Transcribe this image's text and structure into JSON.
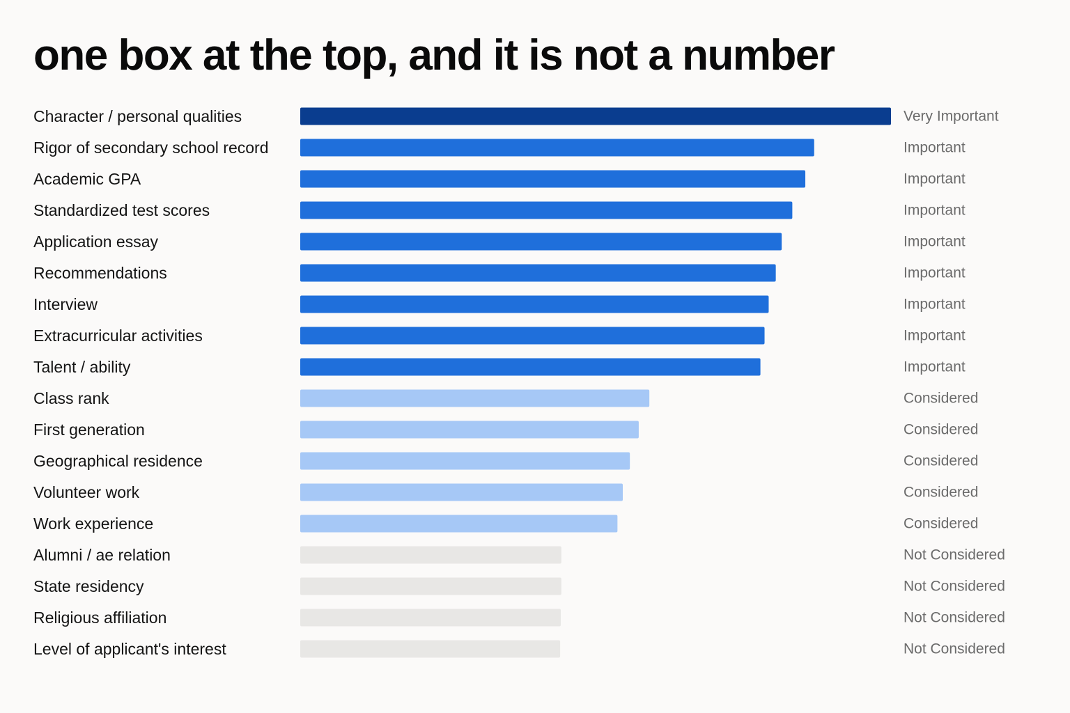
{
  "title": "one box at the top, and it is not a number",
  "chart_data": {
    "type": "bar",
    "orientation": "horizontal",
    "title": "one box at the top, and it is not a number",
    "categories": [
      "Character / personal qualities",
      "Rigor of secondary school record",
      "Academic GPA",
      "Standardized test scores",
      "Application essay",
      "Recommendations",
      "Interview",
      "Extracurricular activities",
      "Talent / ability",
      "Class rank",
      "First generation",
      "Geographical residence",
      "Volunteer work",
      "Work experience",
      "Alumni / ae relation",
      "State residency",
      "Religious affiliation",
      "Level of applicant's interest"
    ],
    "values": [
      100,
      87,
      85.5,
      83.3,
      81.5,
      80.5,
      79.3,
      78.6,
      77.9,
      59.1,
      57.3,
      55.8,
      54.6,
      53.7,
      44.2,
      44.2,
      44.1,
      44
    ],
    "levels": [
      "Very Important",
      "Important",
      "Important",
      "Important",
      "Important",
      "Important",
      "Important",
      "Important",
      "Important",
      "Considered",
      "Considered",
      "Considered",
      "Considered",
      "Considered",
      "Not Considered",
      "Not Considered",
      "Not Considered",
      "Not Considered"
    ],
    "xlim": [
      0,
      100
    ],
    "grid": false,
    "legend": "none",
    "colors": {
      "Very Important": "#0a3d8f",
      "Important": "#1f6fdb",
      "Considered": "#a6c8f6",
      "Not Considered": "#e8e7e5"
    }
  }
}
